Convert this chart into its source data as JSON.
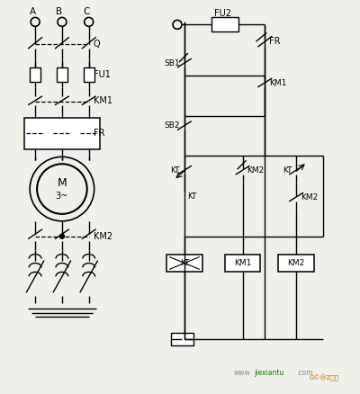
{
  "bg_color": "#f0f0eb",
  "line_color": "#000000",
  "figsize": [
    4.0,
    4.38
  ],
  "dpi": 100,
  "watermark1": "www.",
  "watermark2": "jiexiantu",
  "watermark3": ".com"
}
